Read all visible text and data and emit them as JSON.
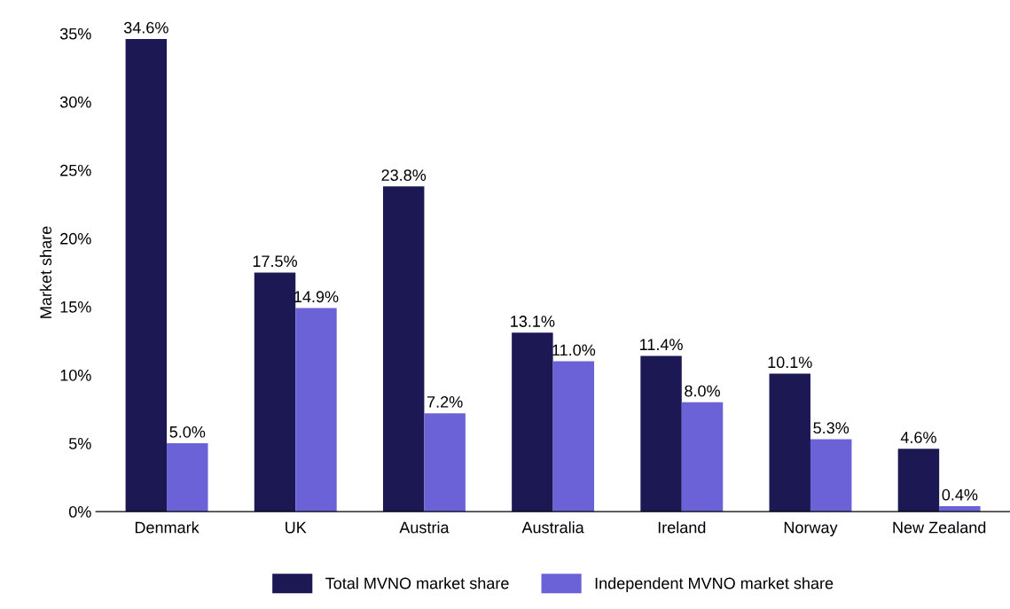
{
  "chart_data": {
    "type": "bar",
    "ylabel": "Market share",
    "categories": [
      "Denmark",
      "UK",
      "Austria",
      "Australia",
      "Ireland",
      "Norway",
      "New Zealand"
    ],
    "series": [
      {
        "name": "Total MVNO market share",
        "color": "#1b1854",
        "values": [
          34.6,
          17.5,
          23.8,
          13.1,
          11.4,
          10.1,
          4.6
        ],
        "value_labels": [
          "34.6%",
          "17.5%",
          "23.8%",
          "13.1%",
          "11.4%",
          "10.1%",
          "4.6%"
        ]
      },
      {
        "name": "Independent MVNO market share",
        "color": "#6a62d6",
        "values": [
          5.0,
          14.9,
          7.2,
          11.0,
          8.0,
          5.3,
          0.4
        ],
        "value_labels": [
          "5.0%",
          "14.9%",
          "7.2%",
          "11.0%",
          "8.0%",
          "5.3%",
          "0.4%"
        ]
      }
    ],
    "ylim": [
      0,
      35
    ],
    "yticks": [
      {
        "value": 0,
        "label": "0%"
      },
      {
        "value": 5,
        "label": "5%"
      },
      {
        "value": 10,
        "label": "10%"
      },
      {
        "value": 15,
        "label": "15%"
      },
      {
        "value": 20,
        "label": "20%"
      },
      {
        "value": 25,
        "label": "25%"
      },
      {
        "value": 30,
        "label": "30%"
      },
      {
        "value": 35,
        "label": "35%"
      }
    ],
    "grid": false,
    "legend": "bottom"
  }
}
